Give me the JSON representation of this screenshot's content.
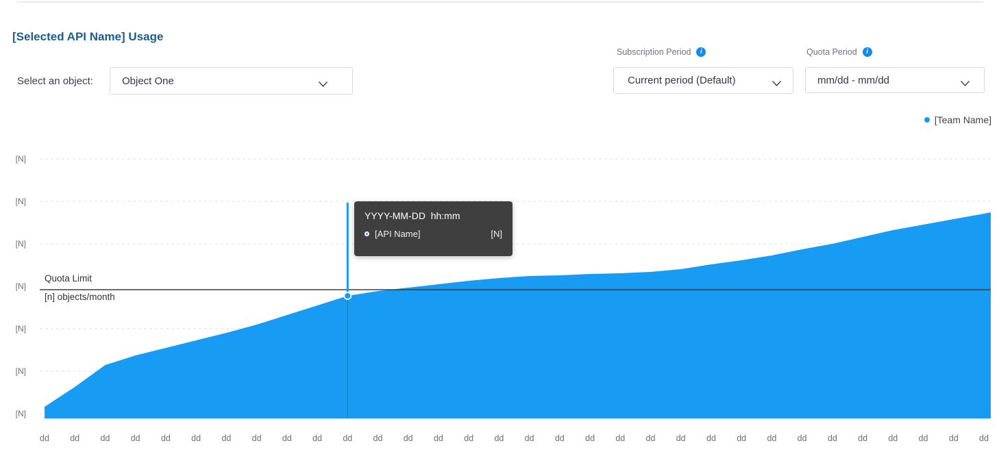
{
  "page": {
    "title": "[Selected API Name] Usage"
  },
  "controls": {
    "object_select": {
      "label": "Select an object:",
      "value": "Object One"
    },
    "subscription_period": {
      "label": "Subscription Period",
      "value": "Current period (Default)",
      "info_icon": "info-icon"
    },
    "quota_period": {
      "label": "Quota Period",
      "value": "mm/dd - mm/dd",
      "info_icon": "info-icon"
    }
  },
  "legend": {
    "items": [
      {
        "label": "[Team Name]",
        "color": "#189bf2"
      }
    ]
  },
  "tooltip": {
    "title": "YYYY-MM-DD  hh:mm",
    "series": "[API Name]",
    "value": "[N]"
  },
  "quota": {
    "label": "Quota Limit",
    "sublabel": "[n] objects/month"
  },
  "colors": {
    "accent_blue": "#189bf2",
    "title_blue": "#1e5b8c",
    "info_icon_blue": "#1589ee",
    "gridline": "#dedede",
    "quota_line": "#3b3f42",
    "axis_text": "#6f6f6f",
    "tooltip_bg": "#303030"
  },
  "chart_data": {
    "type": "area",
    "title": "[Selected API Name] Usage",
    "categories": [
      "dd",
      "dd",
      "dd",
      "dd",
      "dd",
      "dd",
      "dd",
      "dd",
      "dd",
      "dd",
      "dd",
      "dd",
      "dd",
      "dd",
      "dd",
      "dd",
      "dd",
      "dd",
      "dd",
      "dd",
      "dd",
      "dd",
      "dd",
      "dd",
      "dd",
      "dd",
      "dd",
      "dd",
      "dd",
      "dd",
      "dd",
      "dd"
    ],
    "series": [
      {
        "name": "[Team Name]",
        "color": "#189bf2",
        "values": [
          17,
          46,
          78,
          92,
          103,
          114,
          125,
          137,
          151,
          165,
          179,
          186,
          191,
          196,
          201,
          205,
          208,
          209,
          211,
          212,
          214,
          218,
          225,
          231,
          238,
          247,
          255,
          265,
          275,
          283,
          291,
          299
        ]
      }
    ],
    "x_axis": {
      "tick_label": "dd",
      "tick_count": 32
    },
    "y_axis": {
      "tick_label": "[N]",
      "tick_count": 7,
      "note": "all tick labels are the placeholder [N]"
    },
    "ylim": [
      0,
      386
    ],
    "grid": {
      "horizontal": true,
      "style": "dashed"
    },
    "legend_position": "top-right",
    "quota_line": {
      "label": "Quota Limit",
      "sublabel": "[n] objects/month",
      "value": 188
    },
    "hover": {
      "index": 10,
      "tooltip": {
        "title": "YYYY-MM-DD  hh:mm",
        "series": "[API Name]",
        "value": "[N]"
      }
    }
  }
}
